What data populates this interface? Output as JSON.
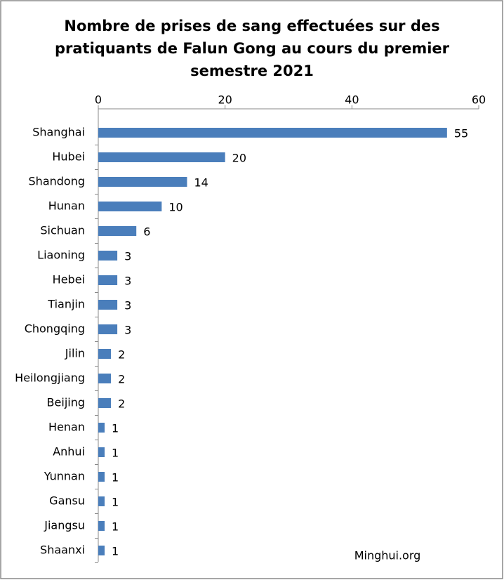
{
  "chart_data": {
    "type": "bar",
    "orientation": "horizontal",
    "title": [
      "Nombre de prises de sang effectuées sur des",
      "pratiquants de Falun Gong au cours du premier",
      "semestre 2021"
    ],
    "categories": [
      "Shanghai",
      "Hubei",
      "Shandong",
      "Hunan",
      "Sichuan",
      "Liaoning",
      "Hebei",
      "Tianjin",
      "Chongqing",
      "Jilin",
      "Heilongjiang",
      "Beijing",
      "Henan",
      "Anhui",
      "Yunnan",
      "Gansu",
      "Jiangsu",
      "Shaanxi"
    ],
    "values": [
      55,
      20,
      14,
      10,
      6,
      3,
      3,
      3,
      3,
      2,
      2,
      2,
      1,
      1,
      1,
      1,
      1,
      1
    ],
    "color": "#4a7ebb",
    "xlim": [
      0,
      60
    ],
    "xticks": [
      0,
      20,
      40,
      60
    ],
    "annotation": "Minghui.org"
  }
}
